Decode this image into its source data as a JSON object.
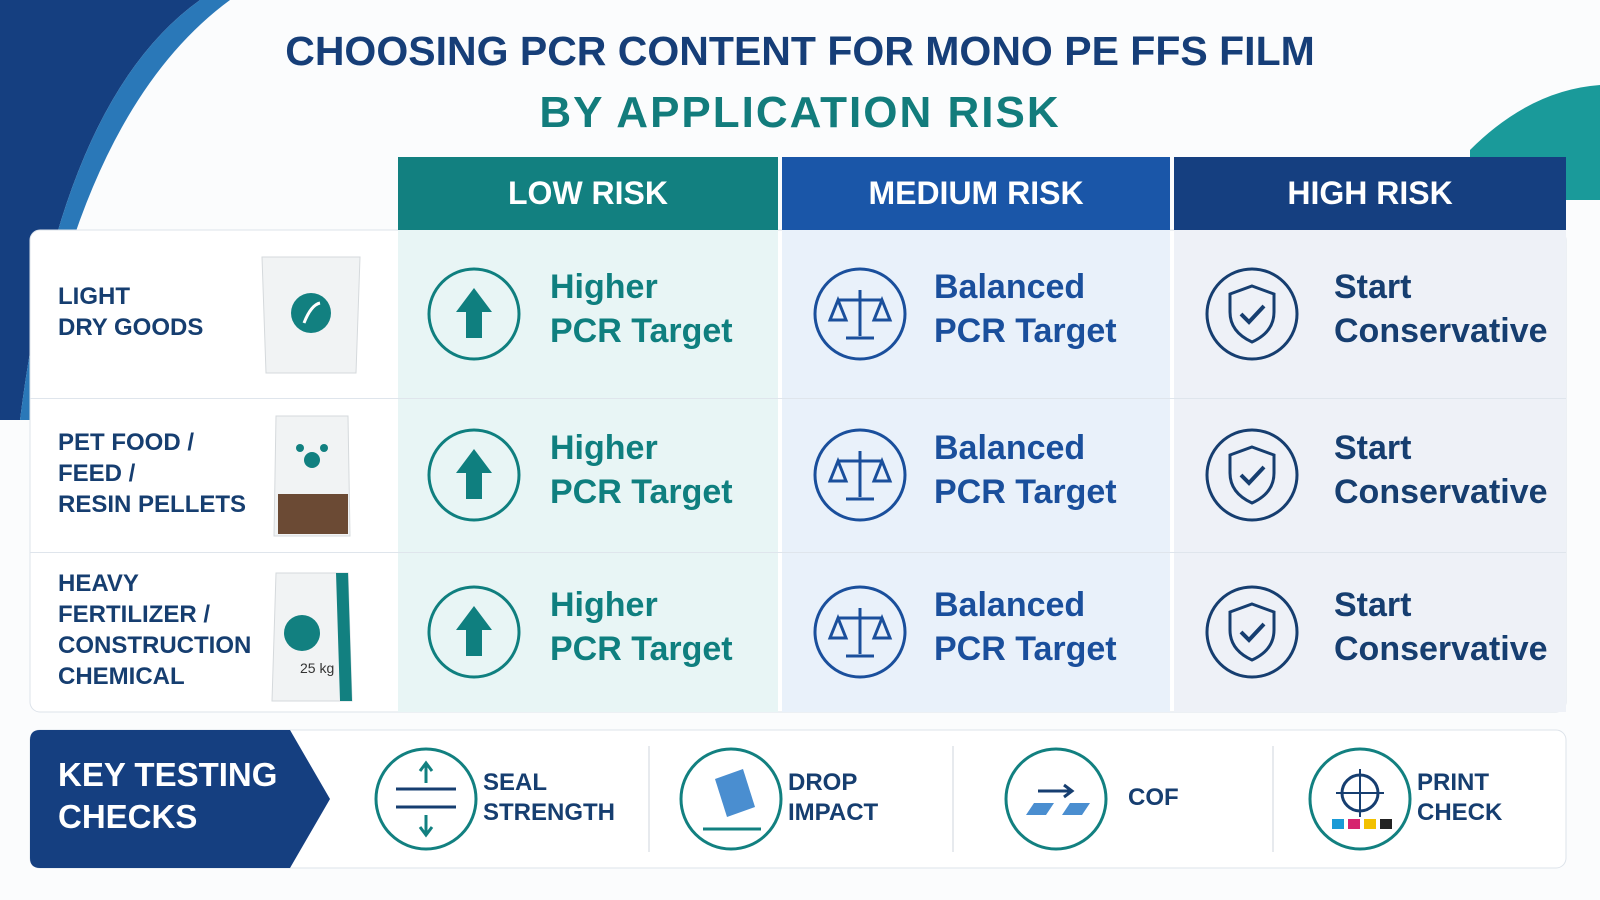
{
  "header": {
    "title": "CHOOSING PCR CONTENT FOR MONO PE FFS FILM",
    "subtitle": "BY APPLICATION RISK"
  },
  "table": {
    "columns": [
      "LOW RISK",
      "MEDIUM RISK",
      "HIGH RISK"
    ],
    "rows": [
      {
        "label": [
          "LIGHT",
          "DRY GOODS"
        ],
        "cells": [
          [
            "Higher",
            "PCR Target"
          ],
          [
            "Balanced",
            "PCR Target"
          ],
          [
            "Start",
            "Conservative"
          ]
        ]
      },
      {
        "label": [
          "PET FOOD /",
          "FEED /",
          "RESIN PELLETS"
        ],
        "cells": [
          [
            "Higher",
            "PCR Target"
          ],
          [
            "Balanced",
            "PCR Target"
          ],
          [
            "Start",
            "Conservative"
          ]
        ]
      },
      {
        "label": [
          "HEAVY",
          "FERTILIZER /",
          "CONSTRUCTION",
          "CHEMICAL"
        ],
        "cells": [
          [
            "Higher",
            "PCR Target"
          ],
          [
            "Balanced",
            "PCR Target"
          ],
          [
            "Start",
            "Conservative"
          ]
        ]
      }
    ],
    "bag_label": "25 kg"
  },
  "testing": {
    "title": [
      "KEY TESTING",
      "CHECKS"
    ],
    "items": [
      [
        "SEAL",
        "STRENGTH"
      ],
      [
        "DROP",
        "IMPACT"
      ],
      [
        "COF"
      ],
      [
        "PRINT",
        "CHECK"
      ]
    ]
  }
}
